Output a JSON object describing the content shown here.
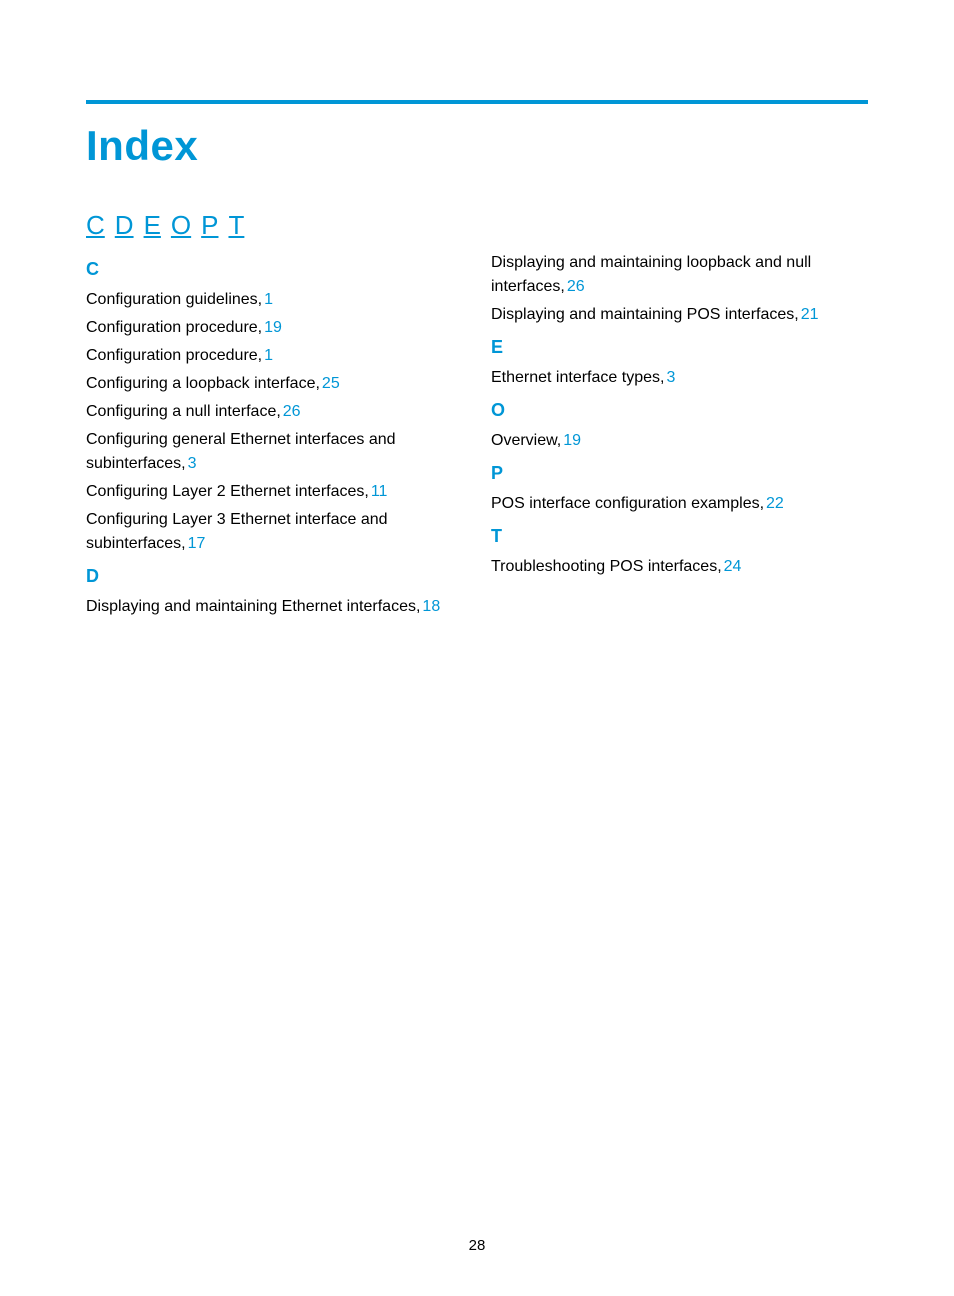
{
  "colors": {
    "accent": "#0096d6",
    "text": "#000000",
    "background": "#ffffff"
  },
  "title": "Index",
  "letter_nav": [
    "C",
    "D",
    "E",
    "O",
    "P",
    "T"
  ],
  "page_number": "28",
  "columns": [
    {
      "sections": [
        {
          "letter": "C",
          "entries": [
            {
              "text": "Configuration guidelines,",
              "page": "1"
            },
            {
              "text": "Configuration procedure,",
              "page": "19"
            },
            {
              "text": "Configuration procedure,",
              "page": "1"
            },
            {
              "text": "Configuring a loopback interface,",
              "page": "25"
            },
            {
              "text": "Configuring a null interface,",
              "page": "26"
            },
            {
              "text": "Configuring general Ethernet interfaces and subinterfaces,",
              "page": "3"
            },
            {
              "text": "Configuring Layer 2 Ethernet interfaces,",
              "page": "11"
            },
            {
              "text": "Configuring Layer 3 Ethernet interface and subinterfaces,",
              "page": "17"
            }
          ]
        },
        {
          "letter": "D",
          "entries": [
            {
              "text": "Displaying and maintaining Ethernet interfaces,",
              "page": "18"
            }
          ]
        }
      ]
    },
    {
      "sections": [
        {
          "letter": "",
          "entries": [
            {
              "text": "Displaying and maintaining loopback and null interfaces,",
              "page": "26"
            },
            {
              "text": "Displaying and maintaining POS interfaces,",
              "page": "21"
            }
          ]
        },
        {
          "letter": "E",
          "entries": [
            {
              "text": "Ethernet interface types,",
              "page": "3"
            }
          ]
        },
        {
          "letter": "O",
          "entries": [
            {
              "text": "Overview,",
              "page": "19"
            }
          ]
        },
        {
          "letter": "P",
          "entries": [
            {
              "text": "POS interface configuration examples,",
              "page": "22"
            }
          ]
        },
        {
          "letter": "T",
          "entries": [
            {
              "text": "Troubleshooting POS interfaces,",
              "page": "24"
            }
          ]
        }
      ]
    }
  ]
}
